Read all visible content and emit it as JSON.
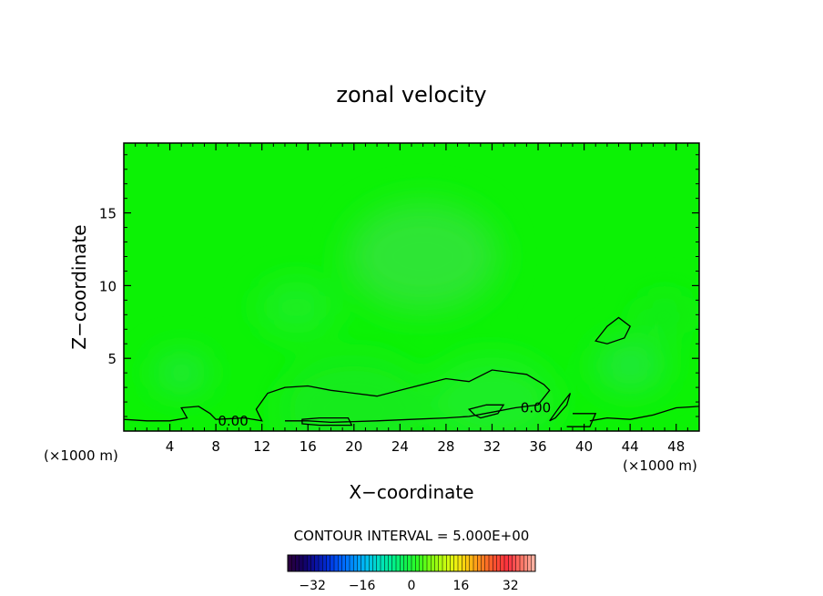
{
  "chart_data": {
    "type": "contour",
    "title": "zonal velocity",
    "xlabel": "X−coordinate",
    "ylabel": "Z−coordinate",
    "x_unit_left": "(×1000 m)",
    "x_unit_right": "(×1000 m)",
    "xlim": [
      0,
      50
    ],
    "ylim": [
      0,
      19.8
    ],
    "x_ticks": [
      4,
      8,
      12,
      16,
      20,
      24,
      28,
      32,
      36,
      40,
      44,
      48
    ],
    "y_ticks": [
      5,
      10,
      15
    ],
    "contour_interval_label": "CONTOUR INTERVAL = 5.000E+00",
    "contour_labels": [
      {
        "text": "0.00",
        "x": 9.5,
        "z": 0.7
      },
      {
        "text": "0.00",
        "x": 35.8,
        "z": 1.6
      }
    ],
    "contours": [
      [
        [
          0,
          0.8
        ],
        [
          2,
          0.7
        ],
        [
          4,
          0.7
        ],
        [
          5.5,
          0.9
        ],
        [
          5,
          1.6
        ],
        [
          6.5,
          1.7
        ],
        [
          7.5,
          1.2
        ],
        [
          8,
          0.8
        ],
        [
          10.5,
          0.9
        ],
        [
          12,
          0.7
        ],
        [
          11.5,
          1.5
        ],
        [
          12.5,
          2.6
        ],
        [
          14,
          3
        ],
        [
          16,
          3.1
        ],
        [
          18,
          2.8
        ],
        [
          20,
          2.6
        ],
        [
          22,
          2.4
        ],
        [
          24,
          2.8
        ],
        [
          26,
          3.2
        ],
        [
          28,
          3.6
        ],
        [
          30,
          3.4
        ],
        [
          32,
          4.2
        ],
        [
          33,
          4.1
        ],
        [
          35,
          3.9
        ],
        [
          36.5,
          3.2
        ],
        [
          37,
          2.8
        ],
        [
          36,
          1.8
        ],
        [
          34,
          1.6
        ],
        [
          32,
          1.3
        ],
        [
          30,
          1
        ],
        [
          28,
          0.9
        ],
        [
          25,
          0.8
        ],
        [
          22,
          0.7
        ],
        [
          18,
          0.6
        ],
        [
          16,
          0.7
        ],
        [
          14,
          0.7
        ]
      ],
      [
        [
          41,
          6.2
        ],
        [
          42,
          7.2
        ],
        [
          43,
          7.8
        ],
        [
          44,
          7.2
        ],
        [
          43.5,
          6.4
        ],
        [
          42,
          6
        ]
      ],
      [
        [
          38,
          1.8
        ],
        [
          38.8,
          2.6
        ],
        [
          38.5,
          1.8
        ],
        [
          37.5,
          0.9
        ],
        [
          37,
          0.7
        ]
      ],
      [
        [
          40.5,
          0.7
        ],
        [
          42,
          0.9
        ],
        [
          44,
          0.8
        ],
        [
          46,
          1.1
        ],
        [
          48,
          1.6
        ],
        [
          50,
          1.7
        ]
      ],
      [
        [
          31,
          0.9
        ],
        [
          32.5,
          1.2
        ],
        [
          33,
          1.8
        ],
        [
          31.5,
          1.8
        ],
        [
          30,
          1.5
        ],
        [
          30.5,
          1.1
        ]
      ],
      [
        [
          15.5,
          0.8
        ],
        [
          17,
          0.9
        ],
        [
          19.5,
          0.9
        ],
        [
          19.8,
          0.4
        ],
        [
          17,
          0.4
        ],
        [
          15.5,
          0.5
        ]
      ],
      [
        [
          38.5,
          0.3
        ],
        [
          40.5,
          0.3
        ],
        [
          41,
          1.2
        ],
        [
          39,
          1.2
        ]
      ]
    ],
    "colorbar": {
      "ticks": [
        -32,
        -16,
        0,
        16,
        32
      ],
      "range": [
        -40,
        40
      ],
      "colors": [
        "#2a0040",
        "#14005e",
        "#0a10a0",
        "#0030d8",
        "#0060ff",
        "#0090ff",
        "#00bff0",
        "#00e0c0",
        "#00f090",
        "#10f050",
        "#30ff20",
        "#80ff10",
        "#c0ff10",
        "#f0f010",
        "#ffc010",
        "#ff8020",
        "#ff5030",
        "#ff3040",
        "#ff7060",
        "#ffb0a0"
      ]
    },
    "field_colors": {
      "background": "#0cf205",
      "patches": [
        "#22e83a",
        "#1aee26",
        "#2ee536",
        "#16eb1c"
      ]
    }
  }
}
